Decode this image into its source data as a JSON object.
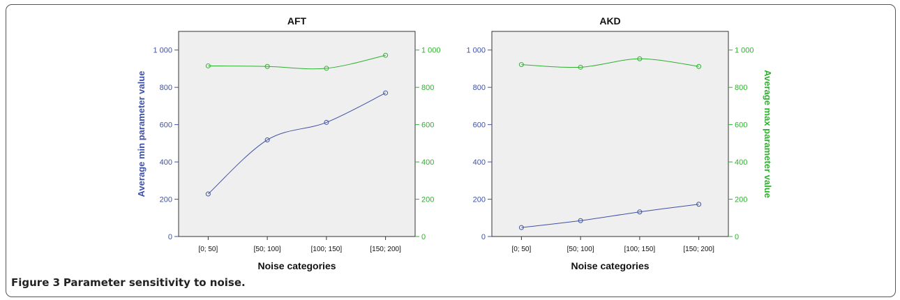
{
  "caption": {
    "label": "Figure 3",
    "text": "Parameter sensitivity to noise."
  },
  "colors": {
    "min_series": "#3f51a5",
    "max_series": "#2fb02f",
    "plot_bg": "#efefef",
    "axis": "#333333"
  },
  "axis_labels": {
    "left": "Average min parameter value",
    "right": "Average max parameter value"
  },
  "chart_data": [
    {
      "type": "line",
      "title": "AFT",
      "xlabel": "Noise categories",
      "ylabel": "Average min parameter value",
      "categories": [
        "[0; 50]",
        "[50; 100]",
        "[100; 150]",
        "[150; 200]"
      ],
      "ylim": [
        0,
        1100
      ],
      "y2lim": [
        0,
        1100
      ],
      "yticks": [
        "0",
        "200",
        "400",
        "600",
        "800",
        "1 000"
      ],
      "y2ticks": [
        "0",
        "200",
        "400",
        "600",
        "800",
        "1 000"
      ],
      "series": [
        {
          "axis": "left",
          "color": "#3f51a5",
          "values": [
            228,
            518,
            612,
            770
          ]
        },
        {
          "axis": "right",
          "color": "#2fb02f",
          "values": [
            915,
            912,
            902,
            972
          ]
        }
      ],
      "grid": false
    },
    {
      "type": "line",
      "title": "AKD",
      "xlabel": "Noise categories",
      "ylabel": "Average max parameter value",
      "categories": [
        "[0; 50]",
        "[50; 100]",
        "[100; 150]",
        "[150; 200]"
      ],
      "ylim": [
        0,
        1100
      ],
      "y2lim": [
        0,
        1100
      ],
      "yticks": [
        "0",
        "200",
        "400",
        "600",
        "800",
        "1 000"
      ],
      "y2ticks": [
        "0",
        "200",
        "400",
        "600",
        "800",
        "1 000"
      ],
      "series": [
        {
          "axis": "left",
          "color": "#3f51a5",
          "values": [
            48,
            85,
            132,
            173
          ]
        },
        {
          "axis": "right",
          "color": "#2fb02f",
          "values": [
            922,
            908,
            953,
            912
          ]
        }
      ],
      "grid": false
    }
  ]
}
